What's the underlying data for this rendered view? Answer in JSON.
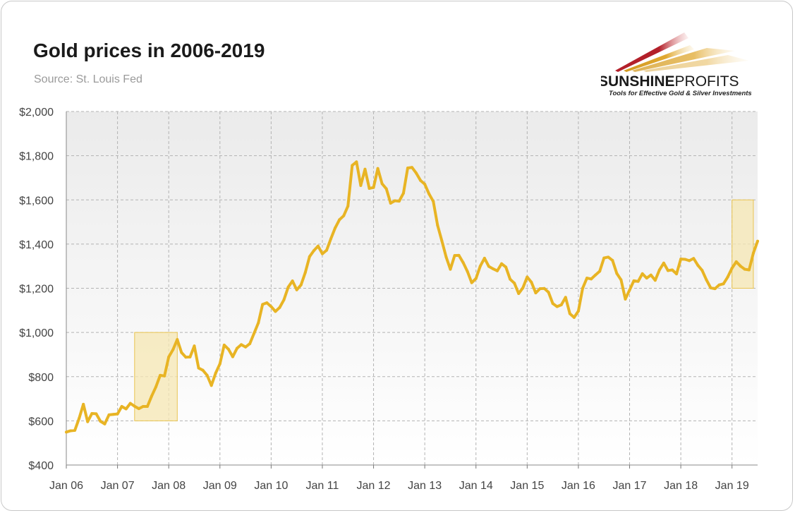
{
  "title": "Gold prices in 2006-2019",
  "subtitle": "Source: St. Louis Fed",
  "logo": {
    "brand_bold": "SUNSHINE",
    "brand_light": "PROFITS",
    "tagline": "Tools for Effective Gold & Silver Investments"
  },
  "colors": {
    "line": "#e8b424",
    "highlight_fill": "#f6e7b3",
    "highlight_stroke": "#e9c452",
    "grid": "#b3b3b3",
    "logo_red": "#b3202a",
    "logo_gold": "#d29a22"
  },
  "chart_data": {
    "type": "line",
    "title": "Gold prices in 2006-2019",
    "subtitle": "Source: St. Louis Fed",
    "xlabel": "",
    "ylabel": "",
    "y_unit": "USD",
    "ylim": [
      400,
      2000
    ],
    "y_ticks": [
      400,
      600,
      800,
      1000,
      1200,
      1400,
      1600,
      1800,
      2000
    ],
    "y_tick_labels": [
      "$400",
      "$600",
      "$800",
      "$1,000",
      "$1,200",
      "$1,400",
      "$1,600",
      "$1,800",
      "$2,000"
    ],
    "x_ticks": [
      "2006-01",
      "2007-01",
      "2008-01",
      "2009-01",
      "2010-01",
      "2011-01",
      "2012-01",
      "2013-01",
      "2014-01",
      "2015-01",
      "2016-01",
      "2017-01",
      "2018-01",
      "2019-01"
    ],
    "x_tick_labels": [
      "Jan 06",
      "Jan 07",
      "Jan 08",
      "Jan 09",
      "Jan 10",
      "Jan 11",
      "Jan 12",
      "Jan 13",
      "Jan 14",
      "Jan 15",
      "Jan 16",
      "Jan 17",
      "Jan 18",
      "Jan 19"
    ],
    "xlim": [
      "2006-01",
      "2019-07"
    ],
    "grid": true,
    "series": [
      {
        "x": [
          "2006-01",
          "2006-02",
          "2006-03",
          "2006-04",
          "2006-05",
          "2006-06",
          "2006-07",
          "2006-08",
          "2006-09",
          "2006-10",
          "2006-11",
          "2006-12",
          "2007-01",
          "2007-02",
          "2007-03",
          "2007-04",
          "2007-05",
          "2007-06",
          "2007-07",
          "2007-08",
          "2007-09",
          "2007-10",
          "2007-11",
          "2007-12",
          "2008-01",
          "2008-02",
          "2008-03",
          "2008-04",
          "2008-05",
          "2008-06",
          "2008-07",
          "2008-08",
          "2008-09",
          "2008-10",
          "2008-11",
          "2008-12",
          "2009-01",
          "2009-02",
          "2009-03",
          "2009-04",
          "2009-05",
          "2009-06",
          "2009-07",
          "2009-08",
          "2009-09",
          "2009-10",
          "2009-11",
          "2009-12",
          "2010-01",
          "2010-02",
          "2010-03",
          "2010-04",
          "2010-05",
          "2010-06",
          "2010-07",
          "2010-08",
          "2010-09",
          "2010-10",
          "2010-11",
          "2010-12",
          "2011-01",
          "2011-02",
          "2011-03",
          "2011-04",
          "2011-05",
          "2011-06",
          "2011-07",
          "2011-08",
          "2011-09",
          "2011-10",
          "2011-11",
          "2011-12",
          "2012-01",
          "2012-02",
          "2012-03",
          "2012-04",
          "2012-05",
          "2012-06",
          "2012-07",
          "2012-08",
          "2012-09",
          "2012-10",
          "2012-11",
          "2012-12",
          "2013-01",
          "2013-02",
          "2013-03",
          "2013-04",
          "2013-05",
          "2013-06",
          "2013-07",
          "2013-08",
          "2013-09",
          "2013-10",
          "2013-11",
          "2013-12",
          "2014-01",
          "2014-02",
          "2014-03",
          "2014-04",
          "2014-05",
          "2014-06",
          "2014-07",
          "2014-08",
          "2014-09",
          "2014-10",
          "2014-11",
          "2014-12",
          "2015-01",
          "2015-02",
          "2015-03",
          "2015-04",
          "2015-05",
          "2015-06",
          "2015-07",
          "2015-08",
          "2015-09",
          "2015-10",
          "2015-11",
          "2015-12",
          "2016-01",
          "2016-02",
          "2016-03",
          "2016-04",
          "2016-05",
          "2016-06",
          "2016-07",
          "2016-08",
          "2016-09",
          "2016-10",
          "2016-11",
          "2016-12",
          "2017-01",
          "2017-02",
          "2017-03",
          "2017-04",
          "2017-05",
          "2017-06",
          "2017-07",
          "2017-08",
          "2017-09",
          "2017-10",
          "2017-11",
          "2017-12",
          "2018-01",
          "2018-02",
          "2018-03",
          "2018-04",
          "2018-05",
          "2018-06",
          "2018-07",
          "2018-08",
          "2018-09",
          "2018-10",
          "2018-11",
          "2018-12",
          "2019-01",
          "2019-02",
          "2019-03",
          "2019-04",
          "2019-05",
          "2019-06",
          "2019-07"
        ],
        "values": [
          549,
          555,
          557,
          611,
          675,
          596,
          633,
          632,
          598,
          586,
          627,
          629,
          631,
          665,
          654,
          679,
          666,
          655,
          665,
          665,
          712,
          754,
          806,
          803,
          889,
          922,
          968,
          909,
          888,
          889,
          939,
          839,
          829,
          806,
          760,
          816,
          858,
          943,
          924,
          890,
          928,
          945,
          934,
          949,
          996,
          1043,
          1127,
          1134,
          1117,
          1095,
          1113,
          1148,
          1205,
          1233,
          1193,
          1215,
          1271,
          1343,
          1370,
          1391,
          1356,
          1372,
          1424,
          1473,
          1510,
          1528,
          1572,
          1756,
          1772,
          1665,
          1739,
          1652,
          1656,
          1742,
          1673,
          1650,
          1585,
          1596,
          1594,
          1630,
          1744,
          1747,
          1721,
          1688,
          1671,
          1627,
          1593,
          1485,
          1415,
          1342,
          1286,
          1348,
          1349,
          1316,
          1276,
          1225,
          1244,
          1300,
          1336,
          1299,
          1288,
          1279,
          1311,
          1296,
          1241,
          1223,
          1176,
          1202,
          1251,
          1227,
          1179,
          1198,
          1199,
          1182,
          1131,
          1117,
          1125,
          1159,
          1085,
          1068,
          1097,
          1200,
          1246,
          1242,
          1260,
          1277,
          1337,
          1341,
          1326,
          1267,
          1238,
          1151,
          1192,
          1234,
          1231,
          1266,
          1246,
          1260,
          1236,
          1283,
          1314,
          1280,
          1283,
          1265,
          1332,
          1331,
          1325,
          1335,
          1304,
          1281,
          1238,
          1202,
          1198,
          1215,
          1220,
          1251,
          1291,
          1320,
          1300,
          1286,
          1283,
          1359,
          1413
        ]
      }
    ],
    "highlights": [
      {
        "x_start": "2007-05",
        "x_end": "2008-03",
        "y_start": 600,
        "y_end": 1000
      },
      {
        "x_start": "2019-01",
        "x_end": "2019-06",
        "y_start": 1200,
        "y_end": 1600
      }
    ]
  }
}
